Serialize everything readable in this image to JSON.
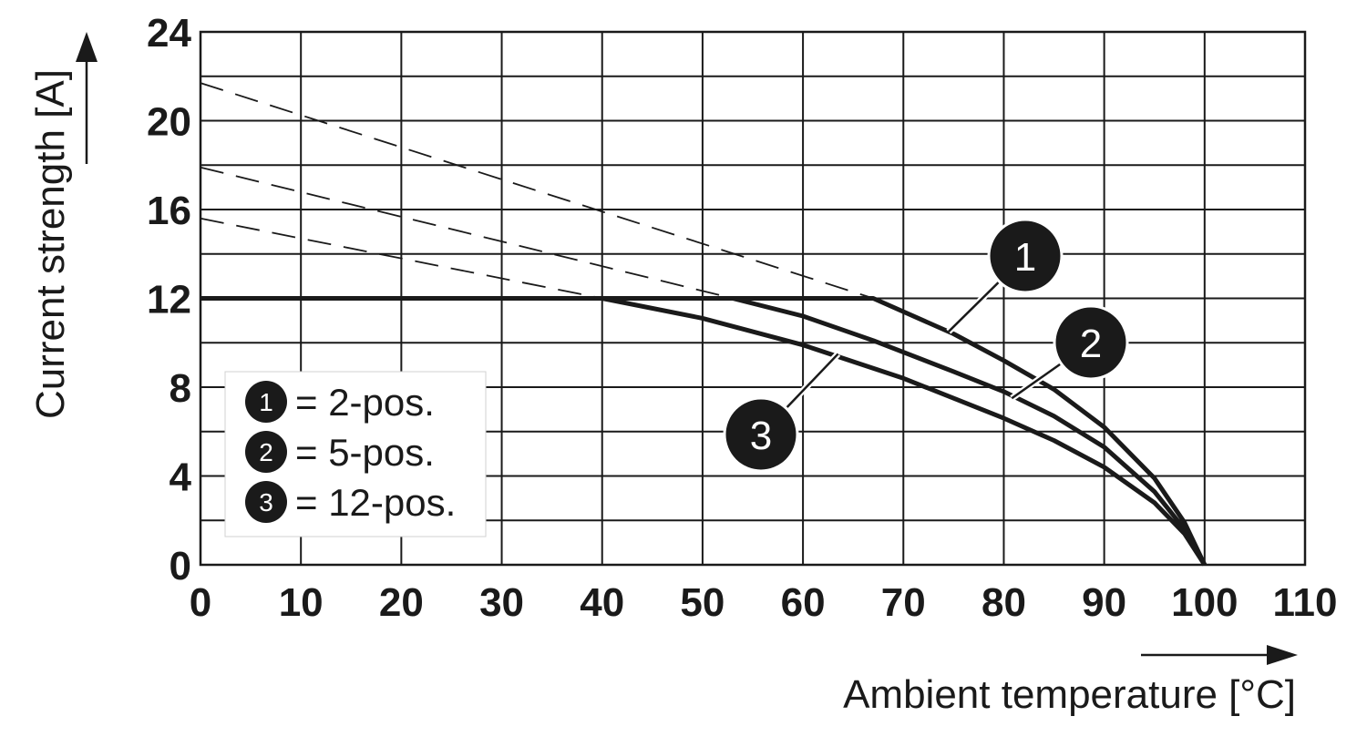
{
  "chart_data": {
    "type": "line",
    "xlabel": "Ambient temperature [°C]",
    "ylabel": "Current strength [A]",
    "xlim": [
      0,
      110
    ],
    "ylim": [
      0,
      24
    ],
    "x_ticks": [
      "0",
      "10",
      "20",
      "30",
      "40",
      "50",
      "60",
      "70",
      "80",
      "90",
      "100",
      "110"
    ],
    "y_ticks": [
      "0",
      "4",
      "8",
      "12",
      "16",
      "20",
      "24"
    ],
    "grid": true,
    "legend_position": "lower-left",
    "legend": [
      {
        "marker": "1",
        "label": "= 2-pos."
      },
      {
        "marker": "2",
        "label": "= 5-pos."
      },
      {
        "marker": "3",
        "label": "= 12-pos."
      }
    ],
    "series": [
      {
        "marker": "1",
        "style": "solid",
        "points": [
          [
            0,
            12
          ],
          [
            67,
            12
          ],
          [
            75,
            10.4
          ],
          [
            80,
            9.2
          ],
          [
            85,
            7.9
          ],
          [
            90,
            6.2
          ],
          [
            95,
            3.9
          ],
          [
            98,
            1.9
          ],
          [
            100,
            0
          ]
        ]
      },
      {
        "marker": "2",
        "style": "solid",
        "points": [
          [
            0,
            12
          ],
          [
            53,
            12
          ],
          [
            60,
            11.2
          ],
          [
            67,
            10.1
          ],
          [
            75,
            8.7
          ],
          [
            80,
            7.8
          ],
          [
            85,
            6.7
          ],
          [
            90,
            5.3
          ],
          [
            95,
            3.3
          ],
          [
            98,
            1.6
          ],
          [
            100,
            0
          ]
        ]
      },
      {
        "marker": "3",
        "style": "solid",
        "points": [
          [
            0,
            12
          ],
          [
            40,
            12
          ],
          [
            50,
            11.1
          ],
          [
            60,
            9.9
          ],
          [
            70,
            8.4
          ],
          [
            80,
            6.6
          ],
          [
            85,
            5.6
          ],
          [
            90,
            4.4
          ],
          [
            95,
            2.8
          ],
          [
            98,
            1.4
          ],
          [
            100,
            0
          ]
        ]
      },
      {
        "marker": "1",
        "style": "dashed",
        "points": [
          [
            0,
            21.7
          ],
          [
            67,
            12
          ]
        ]
      },
      {
        "marker": "2",
        "style": "dashed",
        "points": [
          [
            0,
            17.9
          ],
          [
            53,
            12
          ]
        ]
      },
      {
        "marker": "3",
        "style": "dashed",
        "points": [
          [
            0,
            15.6
          ],
          [
            40,
            12
          ]
        ]
      }
    ]
  }
}
